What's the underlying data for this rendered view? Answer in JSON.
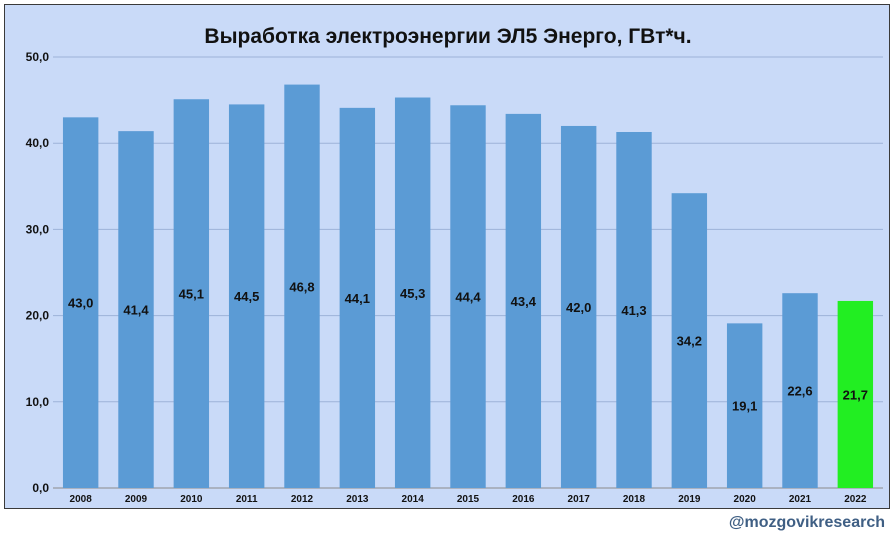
{
  "chart_data": {
    "type": "bar",
    "title": "Выработка электроэнергии ЭЛ5 Энерго, ГВт*ч.",
    "categories": [
      "2008",
      "2009",
      "2010",
      "2011",
      "2012",
      "2013",
      "2014",
      "2015",
      "2016",
      "2017",
      "2018",
      "2019",
      "2020",
      "2021",
      "2022"
    ],
    "values": [
      43.0,
      41.4,
      45.1,
      44.5,
      46.8,
      44.1,
      45.3,
      44.4,
      43.4,
      42.0,
      41.3,
      34.2,
      19.1,
      22.6,
      21.7
    ],
    "value_labels": [
      "43,0",
      "41,4",
      "45,1",
      "44,5",
      "46,8",
      "44,1",
      "45,3",
      "44,4",
      "43,4",
      "42,0",
      "41,3",
      "34,2",
      "19,1",
      "22,6",
      "21,7"
    ],
    "y_ticks": [
      0,
      10,
      20,
      30,
      40,
      50
    ],
    "y_tick_labels": [
      "0,0",
      "10,0",
      "20,0",
      "30,0",
      "40,0",
      "50,0"
    ],
    "ylim": [
      0,
      50
    ],
    "grid": true,
    "xlabel": "",
    "ylabel": "",
    "bar_color": "#5b9bd5",
    "highlight_color": "#22ee22",
    "highlight_index": 14
  },
  "watermark": "@mozgovikresearch"
}
